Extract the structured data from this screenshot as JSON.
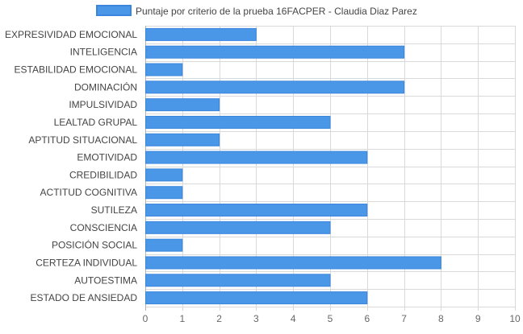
{
  "chart_data": {
    "type": "bar",
    "orientation": "horizontal",
    "categories": [
      "EXPRESIVIDAD EMOCIONAL",
      "INTELIGENCIA",
      "ESTABILIDAD EMOCIONAL",
      "DOMINACIÓN",
      "IMPULSIVIDAD",
      "LEALTAD GRUPAL",
      "APTITUD SITUACIONAL",
      "EMOTIVIDAD",
      "CREDIBILIDAD",
      "ACTITUD COGNITIVA",
      "SUTILEZA",
      "CONSCIENCIA",
      "POSICIÓN SOCIAL",
      "CERTEZA INDIVIDUAL",
      "AUTOESTIMA",
      "ESTADO DE ANSIEDAD"
    ],
    "series": [
      {
        "name": "Puntaje por criterio de la prueba 16FACPER - Claudia Diaz Parez",
        "values": [
          3,
          7,
          1,
          7,
          2,
          5,
          2,
          6,
          1,
          1,
          6,
          5,
          1,
          8,
          5,
          6
        ],
        "color": "#4a97e8",
        "border_color": "#3b86dc"
      }
    ],
    "xlim": [
      0,
      10
    ],
    "x_ticks": [
      "0",
      "1",
      "2",
      "3",
      "4",
      "5",
      "6",
      "7",
      "8",
      "9",
      "10"
    ],
    "grid": true,
    "legend_position": "top",
    "colors": {
      "grid": "#d9d9d9",
      "tick_text": "#666666",
      "label_text": "#444444"
    }
  }
}
